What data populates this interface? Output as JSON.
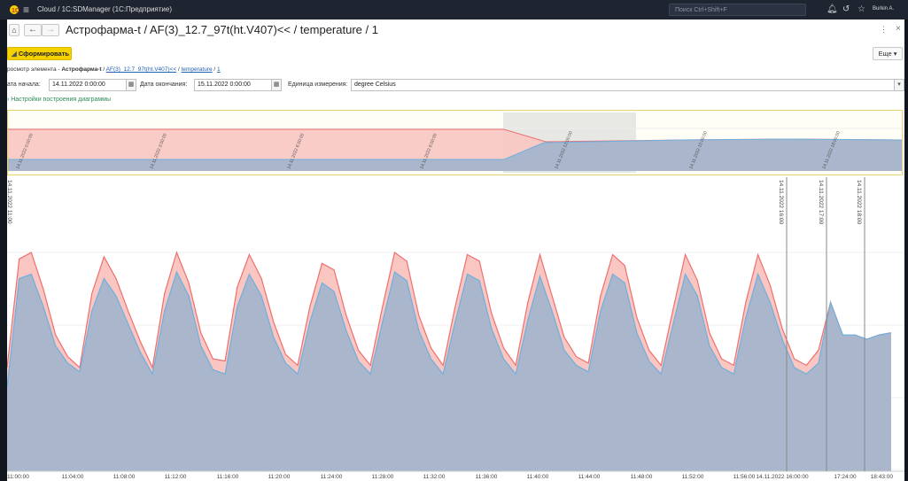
{
  "titlebar": {
    "title": "Cloud / 1С:SDManager  (1С:Предприятие)",
    "search_placeholder": "Поиск Ctrl+Shift+F",
    "user": "Burkin A.",
    "bg": "#1e2430"
  },
  "nav": {
    "page_title": "Астрофарма-t / AF(3)_12.7_97t(ht.V407)<< / temperature / 1",
    "more": "⋮",
    "close": "×"
  },
  "toolbar": {
    "generate_label": "Сформировать",
    "more_label": "Еще ▾",
    "accent": "#f5d100"
  },
  "breadcrumb": {
    "prefix": "росмотр элемента - ",
    "item": "Астрофарма-t",
    "sep": " / ",
    "link1": "AF(3)_12.7_97t(ht.V407)<<",
    "link2": "temperature",
    "link3": "1"
  },
  "filters": {
    "start_label": "ата начала:",
    "start_value": "14.11.2022  0:00:00",
    "end_label": "Дата окончания:",
    "end_value": "15.11.2022  0:00:00",
    "unit_label": "Единица измерения:",
    "unit_value": "degree Celsius"
  },
  "settings_link": "Настройки построения диаграммы",
  "chart_data": [
    {
      "type": "area",
      "role": "overview",
      "x_labels": [
        "14.11.2022 0:00:00",
        "14.11.2022 3:00:00",
        "14.11.2022 6:00:00",
        "14.11.2022 9:00:00",
        "14.11.2022 12:00:00",
        "14.11.2022 15:00:00",
        "14.11.2022 18:00:00",
        "14.11.2022 22:00:00"
      ],
      "colors": {
        "max_fill": "#f9c6c2",
        "max_line": "#ef6f6f",
        "min_fill": "#a9b6cc",
        "min_line": "#6fb0de",
        "selection": "#dddddd"
      }
    },
    {
      "type": "area",
      "role": "detail",
      "x_tick_labels": [
        "11:00:00",
        "11:04:00",
        "11:08:00",
        "11:12:00",
        "11:16:00",
        "11:20:00",
        "11:24:00",
        "11:28:00",
        "11:32:00",
        "11:36:00",
        "11:40:00",
        "11:44:00",
        "11:48:00",
        "11:52:00",
        "11:56:00",
        "14.11.2022 16:00:00",
        "17:24:00",
        "18:43:00"
      ],
      "vertical_markers": [
        "14.11.2022 16:00",
        "14.11.2022 17:00",
        "14.11.2022 18:00"
      ],
      "left_marker": "14.11.2022 11:00",
      "series": [
        {
          "values": [
            0.38,
            0.88,
            0.9,
            0.75,
            0.57,
            0.49,
            0.45,
            0.73,
            0.88,
            0.8,
            0.67,
            0.54,
            0.44,
            0.73,
            0.91,
            0.8,
            0.57,
            0.46,
            0.44,
            0.75,
            0.9,
            0.8,
            0.61,
            0.49,
            0.44,
            0.68,
            0.86,
            0.82,
            0.64,
            0.5,
            0.44,
            0.68,
            0.91,
            0.87,
            0.64,
            0.51,
            0.44,
            0.68,
            0.9,
            0.87,
            0.65,
            0.51,
            0.44,
            0.69,
            0.89,
            0.73,
            0.55,
            0.48,
            0.45,
            0.73,
            0.9,
            0.86,
            0.63,
            0.5,
            0.44,
            0.67,
            0.9,
            0.8,
            0.57,
            0.47,
            0.44,
            0.7,
            0.9,
            0.77,
            0.6,
            0.47,
            0.44,
            0.49,
            0.77,
            0.62,
            0.62,
            0.6,
            0.62,
            0.63
          ]
        },
        {
          "values": [
            0.47,
            0.97,
            1.0,
            0.83,
            0.62,
            0.52,
            0.47,
            0.81,
            0.98,
            0.88,
            0.73,
            0.59,
            0.47,
            0.81,
            1.0,
            0.86,
            0.63,
            0.51,
            0.5,
            0.84,
            0.99,
            0.88,
            0.68,
            0.53,
            0.48,
            0.75,
            0.95,
            0.92,
            0.71,
            0.55,
            0.48,
            0.75,
            1.0,
            0.96,
            0.71,
            0.56,
            0.48,
            0.75,
            0.99,
            0.96,
            0.72,
            0.56,
            0.48,
            0.77,
            0.99,
            0.8,
            0.61,
            0.52,
            0.49,
            0.8,
            0.99,
            0.94,
            0.7,
            0.55,
            0.48,
            0.74,
            0.99,
            0.87,
            0.63,
            0.51,
            0.48,
            0.77,
            0.99,
            0.85,
            0.65,
            0.51,
            0.48,
            0.55,
            0.77,
            0.62,
            0.62,
            0.6,
            0.62,
            0.63
          ]
        }
      ],
      "colors": {
        "max_fill": "#f9c6c2",
        "max_line": "#ef6f6f",
        "min_fill": "#a9b6cc",
        "min_line": "#6fb0de",
        "marker": "#888888"
      }
    }
  ]
}
